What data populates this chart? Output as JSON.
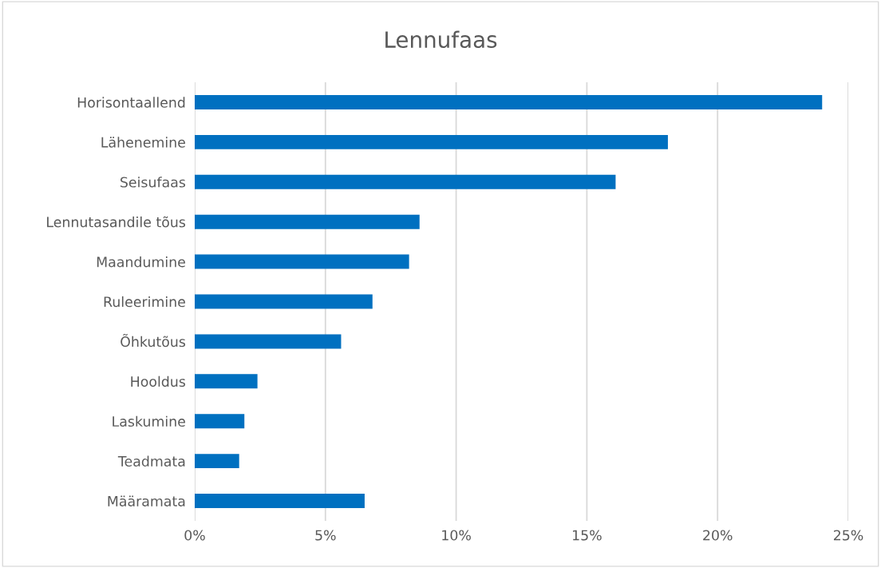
{
  "chart_data": {
    "type": "bar",
    "orientation": "horizontal",
    "title": "Lennufaas",
    "categories": [
      "Horisontaallend",
      "Lähenemine",
      "Seisufaas",
      "Lennutasandile tõus",
      "Maandumine",
      "Ruleerimine",
      "Õhkutõus",
      "Hooldus",
      "Laskumine",
      "Teadmata",
      "Määramata"
    ],
    "values": [
      24.0,
      18.1,
      16.1,
      8.6,
      8.2,
      6.8,
      5.6,
      2.4,
      1.9,
      1.7,
      6.5
    ],
    "color": "#0070c0",
    "xlim": [
      0,
      25
    ],
    "xticks": [
      {
        "value": 0,
        "label": "0%"
      },
      {
        "value": 5,
        "label": "5%"
      },
      {
        "value": 10,
        "label": "10%"
      },
      {
        "value": 15,
        "label": "15%"
      },
      {
        "value": 20,
        "label": "20%"
      },
      {
        "value": 25,
        "label": "25%"
      }
    ],
    "grid": "x",
    "legend": false
  }
}
